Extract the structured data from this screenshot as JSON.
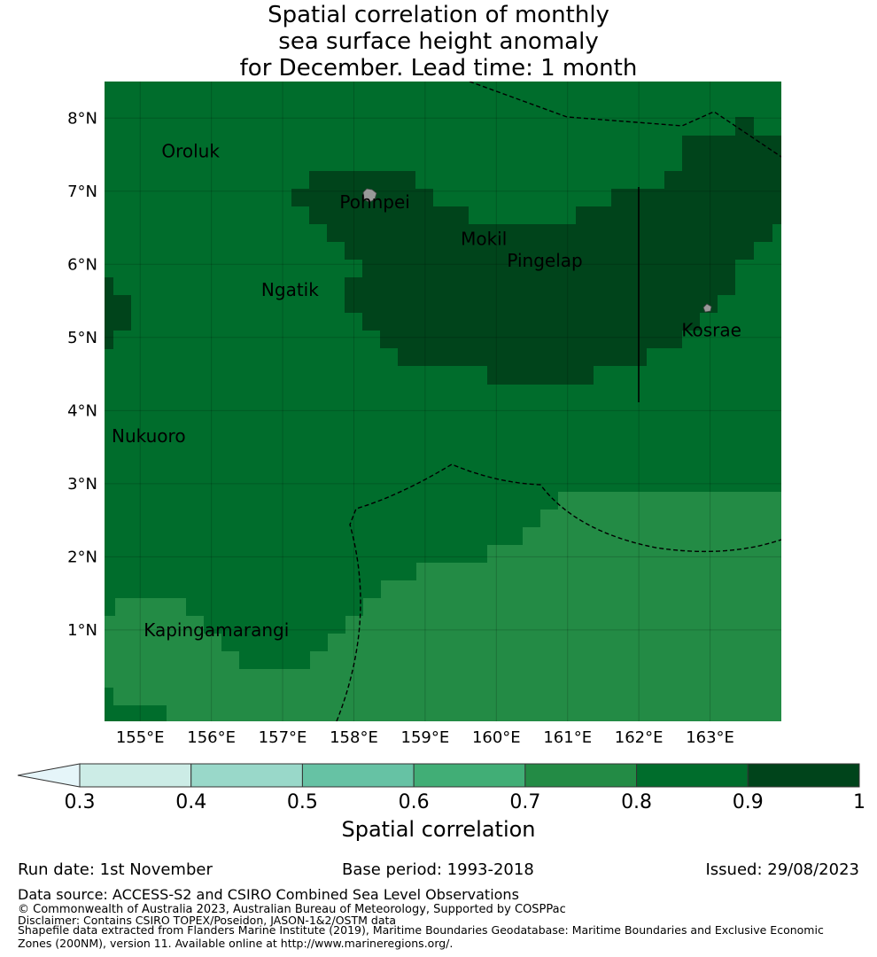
{
  "title_lines": [
    "Spatial correlation of monthly",
    "sea surface height anomaly",
    "for December. Lead time: 1 month"
  ],
  "map": {
    "lon_range": [
      154.5,
      164.0
    ],
    "lat_range": [
      -0.25,
      8.5
    ],
    "lat_ticks": [
      {
        "value": 8,
        "label": "8°N"
      },
      {
        "value": 7,
        "label": "7°N"
      },
      {
        "value": 6,
        "label": "6°N"
      },
      {
        "value": 5,
        "label": "5°N"
      },
      {
        "value": 4,
        "label": "4°N"
      },
      {
        "value": 3,
        "label": "3°N"
      },
      {
        "value": 2,
        "label": "2°N"
      },
      {
        "value": 1,
        "label": "1°N"
      }
    ],
    "lon_ticks": [
      {
        "value": 155,
        "label": "155°E"
      },
      {
        "value": 156,
        "label": "156°E"
      },
      {
        "value": 157,
        "label": "157°E"
      },
      {
        "value": 158,
        "label": "158°E"
      },
      {
        "value": 159,
        "label": "159°E"
      },
      {
        "value": 160,
        "label": "160°E"
      },
      {
        "value": 161,
        "label": "161°E"
      },
      {
        "value": 162,
        "label": "162°E"
      },
      {
        "value": 163,
        "label": "163°E"
      }
    ],
    "places": [
      {
        "name": "Oroluk",
        "lon": 155.3,
        "lat": 7.55
      },
      {
        "name": "Pohnpei",
        "lon": 157.8,
        "lat": 6.85
      },
      {
        "name": "Mokil",
        "lon": 159.5,
        "lat": 6.35
      },
      {
        "name": "Pingelap",
        "lon": 160.15,
        "lat": 6.05
      },
      {
        "name": "Ngatik",
        "lon": 156.7,
        "lat": 5.65
      },
      {
        "name": "Kosrae",
        "lon": 162.6,
        "lat": 5.1
      },
      {
        "name": "Nukuoro",
        "lon": 154.6,
        "lat": 3.65
      },
      {
        "name": "Kapingamarangi",
        "lon": 155.05,
        "lat": 1.0
      }
    ],
    "corr_bands": {
      "band_0.7_0.8": "#238b45",
      "band_0.8_0.9": "#006d2c",
      "band_0.9_1.0": "#00441b"
    },
    "land_color": "#999999"
  },
  "colorbar": {
    "extend_color": "#e5f5f9",
    "colors": [
      "#ccece6",
      "#99d8c9",
      "#66c2a4",
      "#41ae76",
      "#238b45",
      "#006d2c",
      "#00441b"
    ],
    "labels": [
      "0.3",
      "0.4",
      "0.5",
      "0.6",
      "0.7",
      "0.8",
      "0.9",
      "1"
    ],
    "title": "Spatial correlation"
  },
  "footer": {
    "run_date": "Run date: 1st November",
    "base_period": "Base period: 1993-2018",
    "issued": "Issued: 29/08/2023",
    "data_source": "Data source: ACCESS-S2 and CSIRO Combined Sea Level Observations",
    "copyright": "© Commonwealth of Australia 2023, Australian Bureau of Meteorology, Supported by COSPPac",
    "disclaimer": "Disclaimer: Contains CSIRO TOPEX/Poseidon, JASON-1&2/OSTM data",
    "shapefile": "Shapefile data extracted from Flanders Marine Institute (2019), Maritime Boundaries Geodatabase: Maritime Boundaries and Exclusive Economic Zones (200NM), version 11. Available online at http://www.marineregions.org/."
  }
}
